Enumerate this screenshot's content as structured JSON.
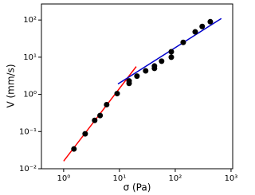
{
  "chart_data": {
    "type": "scatter",
    "x_label": "σ (Pa)",
    "y_label": "V (mm/s)",
    "log_x": true,
    "log_y": true,
    "xlim": [
      0.4,
      1070
    ],
    "ylim": [
      0.01,
      270
    ],
    "xticks": [
      {
        "value": 1,
        "label": "10⁰"
      },
      {
        "value": 10,
        "label": "10¹"
      },
      {
        "value": 100,
        "label": "10²"
      },
      {
        "value": 1000,
        "label": "10³"
      }
    ],
    "yticks": [
      {
        "value": 0.01,
        "label": "10⁻²"
      },
      {
        "value": 0.1,
        "label": "10⁻¹"
      },
      {
        "value": 1,
        "label": "10⁰"
      },
      {
        "value": 10,
        "label": "10¹"
      },
      {
        "value": 100,
        "label": "10²"
      }
    ],
    "points": {
      "color": "#000000",
      "x": [
        1.53,
        2.43,
        3.6,
        4.5,
        5.9,
        9.1,
        14.9,
        14.9,
        20.6,
        29.5,
        42.4,
        42.4,
        57,
        85,
        85,
        139,
        228,
        304,
        425
      ],
      "y": [
        0.034,
        0.087,
        0.2,
        0.27,
        0.53,
        1.05,
        1.98,
        2.3,
        3.1,
        4.3,
        5.8,
        5.0,
        7.8,
        10,
        14,
        25,
        48,
        67,
        90
      ]
    },
    "lines": [
      {
        "color": "#ff0000",
        "x": [
          1,
          20
        ],
        "y": [
          0.016,
          5.6
        ]
      },
      {
        "color": "#0000cc",
        "x": [
          9.4,
          670
        ],
        "y": [
          1.9,
          110
        ]
      }
    ]
  }
}
